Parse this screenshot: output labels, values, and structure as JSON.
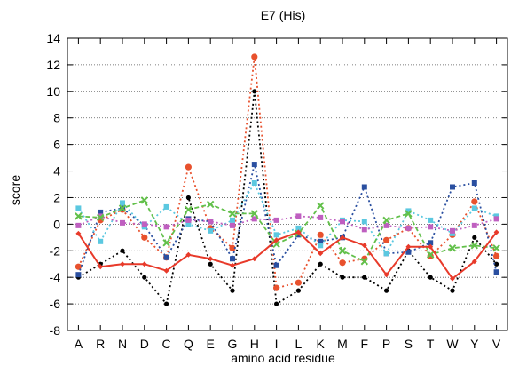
{
  "chart_data": {
    "type": "line",
    "title": "E7 (His)",
    "xlabel": "amino acid residue",
    "ylabel": "score",
    "ylim": [
      -8,
      14
    ],
    "yticks": [
      -8,
      -6,
      -4,
      -2,
      0,
      2,
      4,
      6,
      8,
      10,
      12,
      14
    ],
    "grid": "horizontal dotted",
    "legend": "none",
    "categories": [
      "A",
      "R",
      "N",
      "D",
      "C",
      "Q",
      "E",
      "G",
      "H",
      "I",
      "L",
      "K",
      "M",
      "F",
      "P",
      "S",
      "T",
      "W",
      "Y",
      "V"
    ],
    "series": [
      {
        "color": "#000000",
        "style": "dotted",
        "marker": "circle",
        "values": [
          -4,
          -3,
          -2,
          -4,
          -6,
          2,
          -3,
          -5,
          10,
          -6,
          -5,
          -3,
          -4,
          -4,
          -5,
          -2,
          -4,
          -5,
          -1,
          -3
        ]
      },
      {
        "color": "#e8512d",
        "style": "dotted",
        "marker": "circle",
        "values": [
          -3.2,
          0.3,
          1.1,
          -1.0,
          -2.5,
          4.3,
          -0.3,
          -1.8,
          12.6,
          -4.8,
          -4.4,
          -0.8,
          -2.9,
          -2.6,
          -1.2,
          -0.3,
          -2.4,
          -0.8,
          1.7,
          -2.4
        ]
      },
      {
        "color": "#2a4fa0",
        "style": "dotted",
        "marker": "square",
        "values": [
          -3.8,
          0.9,
          1.2,
          -0.1,
          -2.5,
          0.4,
          0.2,
          -2.6,
          4.5,
          -3.1,
          -0.8,
          -1.3,
          -1.0,
          2.8,
          -2.2,
          -2.1,
          -1.4,
          2.8,
          3.1,
          -3.6
        ]
      },
      {
        "color": "#5bc8e0",
        "style": "dotted",
        "marker": "square",
        "values": [
          1.2,
          -1.3,
          1.6,
          -0.2,
          1.3,
          0.0,
          -0.5,
          0.3,
          3.1,
          -0.8,
          -0.3,
          -1.6,
          0.3,
          0.2,
          -2.2,
          1.0,
          0.3,
          -0.7,
          1.2,
          0.6
        ]
      },
      {
        "color": "#bf5fc0",
        "style": "dotted",
        "marker": "square",
        "values": [
          -0.1,
          0.6,
          0.1,
          0.0,
          -0.2,
          0.3,
          0.2,
          -0.1,
          0.4,
          0.3,
          0.6,
          0.5,
          0.2,
          -0.4,
          -0.1,
          -0.3,
          -0.2,
          -0.5,
          -0.1,
          0.4
        ]
      },
      {
        "color": "#62c04a",
        "style": "dashed",
        "marker": "x",
        "values": [
          0.6,
          0.5,
          1.2,
          1.8,
          -1.4,
          1.1,
          1.5,
          0.8,
          0.8,
          -1.5,
          -0.7,
          1.4,
          -2.0,
          -2.8,
          0.3,
          0.8,
          -2.3,
          -1.8,
          -1.6,
          -1.8
        ]
      },
      {
        "color": "#e83a2a",
        "style": "solid",
        "marker": "diamond",
        "values": [
          -0.7,
          -3.2,
          -3.0,
          -3.0,
          -3.5,
          -2.3,
          -2.6,
          -3.1,
          -2.6,
          -1.2,
          -0.6,
          -2.2,
          -1.0,
          -1.6,
          -3.8,
          -1.7,
          -1.7,
          -4.1,
          -2.8,
          -0.6
        ]
      }
    ]
  }
}
